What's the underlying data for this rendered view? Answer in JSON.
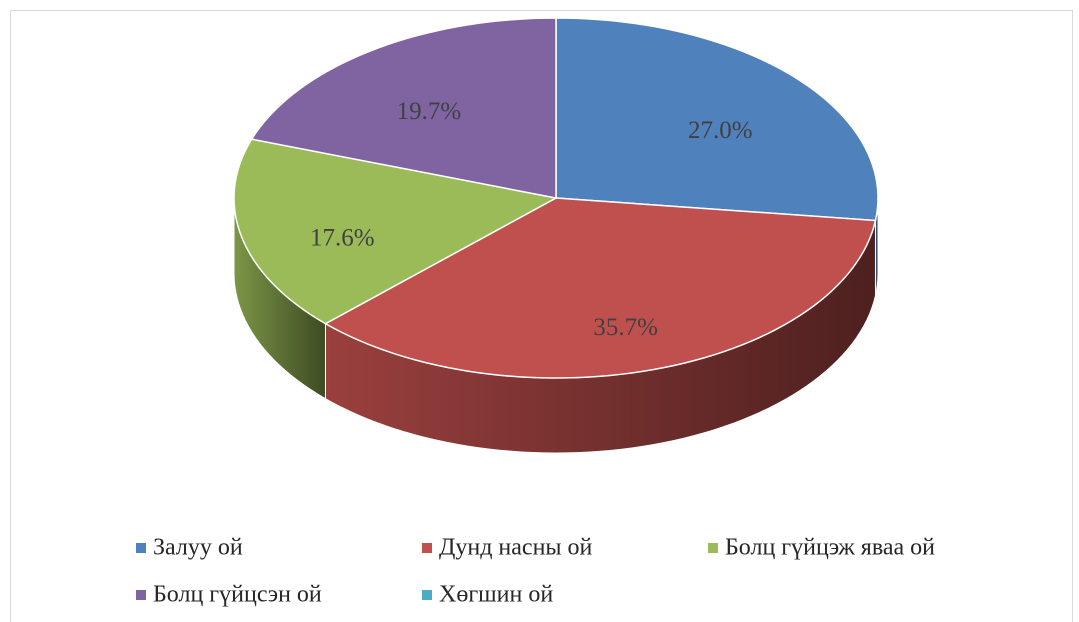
{
  "chart_data": {
    "type": "pie",
    "categories": [
      "Залуу ой",
      "Дунд насны ой",
      "Болц гүйцэж яваа ой",
      "Болц гүйцсэн ой",
      "Хөгшин ой"
    ],
    "values": [
      27.0,
      35.7,
      17.6,
      19.7,
      0
    ],
    "value_labels": [
      "27.0%",
      "35.7%",
      "17.6%",
      "19.7%",
      null
    ],
    "colors": [
      "#4f81bd",
      "#c0504d",
      "#9bbb59",
      "#8064a2",
      "#4bacc6"
    ],
    "legend": "bottom"
  }
}
